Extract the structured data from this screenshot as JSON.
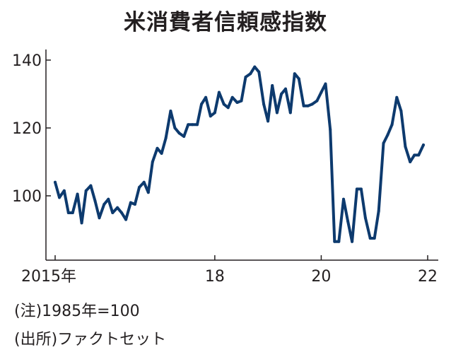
{
  "title": "米消費者信頼感指数",
  "notes": {
    "note1": "(注)1985年=100",
    "note2": "(出所)ファクトセット"
  },
  "colors": {
    "line": "#0d3a6e",
    "axis": "#231f20"
  },
  "chart_data": {
    "type": "line",
    "title": "米消費者信頼感指数",
    "xlabel": "",
    "ylabel": "",
    "x_ticks": [
      {
        "value": 2015,
        "label": "2015年"
      },
      {
        "value": 2018,
        "label": "18"
      },
      {
        "value": 2020,
        "label": "20"
      },
      {
        "value": 2022,
        "label": "22"
      }
    ],
    "y_ticks": [
      100,
      120,
      140
    ],
    "xlim": [
      2014.9,
      2022.2
    ],
    "ylim": [
      83,
      142
    ],
    "grid": false,
    "series": [
      {
        "name": "",
        "x": [
          2015.0,
          2015.08,
          2015.17,
          2015.25,
          2015.33,
          2015.42,
          2015.5,
          2015.58,
          2015.67,
          2015.75,
          2015.83,
          2015.92,
          2016.0,
          2016.08,
          2016.17,
          2016.25,
          2016.33,
          2016.42,
          2016.5,
          2016.58,
          2016.67,
          2016.75,
          2016.83,
          2016.92,
          2017.0,
          2017.08,
          2017.17,
          2017.25,
          2017.33,
          2017.42,
          2017.5,
          2017.58,
          2017.67,
          2017.75,
          2017.83,
          2017.92,
          2018.0,
          2018.08,
          2018.17,
          2018.25,
          2018.33,
          2018.42,
          2018.5,
          2018.58,
          2018.67,
          2018.75,
          2018.83,
          2018.92,
          2019.0,
          2019.08,
          2019.17,
          2019.25,
          2019.33,
          2019.42,
          2019.5,
          2019.58,
          2019.67,
          2019.75,
          2019.83,
          2019.92,
          2020.0,
          2020.08,
          2020.17,
          2020.25,
          2020.33,
          2020.42,
          2020.5,
          2020.58,
          2020.67,
          2020.75,
          2020.83,
          2020.92,
          2021.0,
          2021.08,
          2021.17,
          2021.25,
          2021.33,
          2021.42,
          2021.5,
          2021.58,
          2021.67,
          2021.75,
          2021.83,
          2021.92
        ],
        "values": [
          104.0,
          99.5,
          101.5,
          95.0,
          95.0,
          100.5,
          92.0,
          101.5,
          103.0,
          98.5,
          93.5,
          97.5,
          99.0,
          95.0,
          96.5,
          95.0,
          93.0,
          98.0,
          97.5,
          102.5,
          104.0,
          101.0,
          110.0,
          114.0,
          112.5,
          117.0,
          125.0,
          120.0,
          118.5,
          117.5,
          121.0,
          121.0,
          121.0,
          127.0,
          129.0,
          123.5,
          124.5,
          130.5,
          127.0,
          126.0,
          129.0,
          127.5,
          128.0,
          135.0,
          136.0,
          138.0,
          136.5,
          127.0,
          122.0,
          132.5,
          124.5,
          130.0,
          131.5,
          124.5,
          136.0,
          134.5,
          126.5,
          126.5,
          127.0,
          128.0,
          130.5,
          133.0,
          119.5,
          86.5,
          86.5,
          99.0,
          92.5,
          86.5,
          102.0,
          102.0,
          93.5,
          87.5,
          87.5,
          95.5,
          115.5,
          118.0,
          121.0,
          129.0,
          125.0,
          114.5,
          110.0,
          112.0,
          112.0,
          115.0
        ]
      }
    ]
  }
}
